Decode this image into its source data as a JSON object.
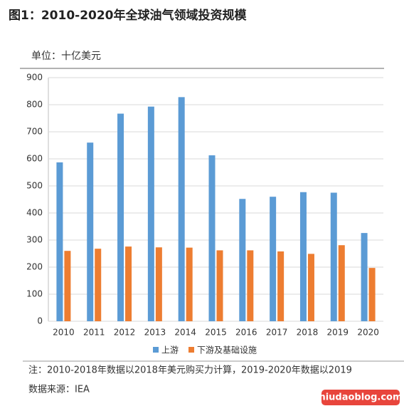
{
  "chart_data": {
    "type": "bar",
    "title": "图1：2010-2020年全球油气领域投资规模",
    "unit_label": "单位：十亿美元",
    "categories": [
      "2010",
      "2011",
      "2012",
      "2013",
      "2014",
      "2015",
      "2016",
      "2017",
      "2018",
      "2019",
      "2020"
    ],
    "series": [
      {
        "name": "上游",
        "color": "#5b9bd5",
        "values": [
          587,
          660,
          767,
          793,
          828,
          613,
          452,
          460,
          477,
          475,
          326
        ]
      },
      {
        "name": "下游及基础设施",
        "color": "#ed7d31",
        "values": [
          260,
          268,
          276,
          273,
          272,
          262,
          262,
          258,
          249,
          281,
          197
        ]
      }
    ],
    "ylim": [
      0,
      900
    ],
    "yticks": [
      0,
      100,
      200,
      300,
      400,
      500,
      600,
      700,
      800,
      900
    ],
    "grid": true,
    "legend": "bottom",
    "note": "注：2010-2018年数据以2018年美元购买力计算，2019-2020年数据以2019",
    "source": "数据来源：IEA",
    "watermark": "niudaoblog.com"
  }
}
